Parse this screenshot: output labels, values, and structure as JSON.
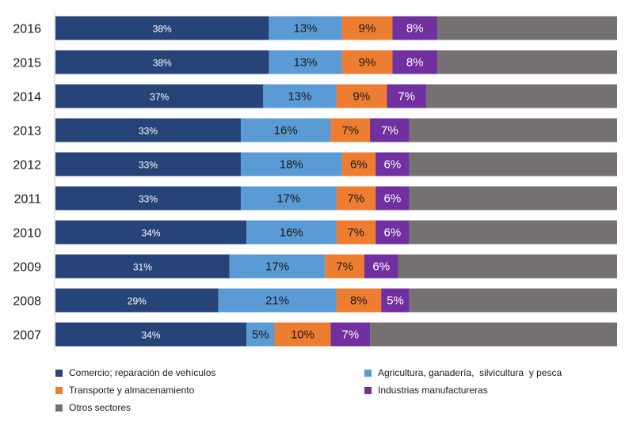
{
  "chart_data": {
    "type": "bar",
    "orientation": "horizontal",
    "stacked": "percent",
    "categories": [
      "2016",
      "2015",
      "2014",
      "2013",
      "2012",
      "2011",
      "2010",
      "2009",
      "2008",
      "2007"
    ],
    "series": [
      {
        "name": "Comercio; reparación de vehículos",
        "color": "#264478",
        "values": [
          38,
          38,
          37,
          33,
          33,
          33,
          34,
          31,
          29,
          34
        ],
        "labels": [
          "38%",
          "38%",
          "37%",
          "33%",
          "33%",
          "33%",
          "34%",
          "31%",
          "29%",
          "34%"
        ]
      },
      {
        "name": "Agricultura, ganadería,  silvicultura  y pesca",
        "color": "#5B9BD5",
        "values": [
          13,
          13,
          13,
          16,
          18,
          17,
          16,
          17,
          21,
          5
        ],
        "labels": [
          "13%",
          "13%",
          "13%",
          "16%",
          "18%",
          "17%",
          "16%",
          "17%",
          "21%",
          "5%"
        ]
      },
      {
        "name": "Transporte y almacenamiento",
        "color": "#ED7D31",
        "values": [
          9,
          9,
          9,
          7,
          6,
          7,
          7,
          7,
          8,
          10
        ],
        "labels": [
          "9%",
          "9%",
          "9%",
          "7%",
          "6%",
          "7%",
          "7%",
          "7%",
          "8%",
          "10%"
        ]
      },
      {
        "name": "Industrias manufactureras",
        "color": "#7030A0",
        "values": [
          8,
          8,
          7,
          7,
          6,
          6,
          6,
          6,
          5,
          7
        ],
        "labels": [
          "8%",
          "8%",
          "7%",
          "7%",
          "6%",
          "6%",
          "6%",
          "6%",
          "5%",
          "7%"
        ]
      },
      {
        "name": "Otros sectores",
        "color": "#767171",
        "values": [
          32,
          32,
          34,
          37,
          37,
          37,
          37,
          39,
          37,
          44
        ],
        "labels": [
          "",
          "",
          "",
          "",
          "",
          "",
          "",
          "",
          "",
          ""
        ]
      }
    ],
    "xlim": [
      0,
      100
    ],
    "grid": false,
    "legend_position": "bottom"
  }
}
